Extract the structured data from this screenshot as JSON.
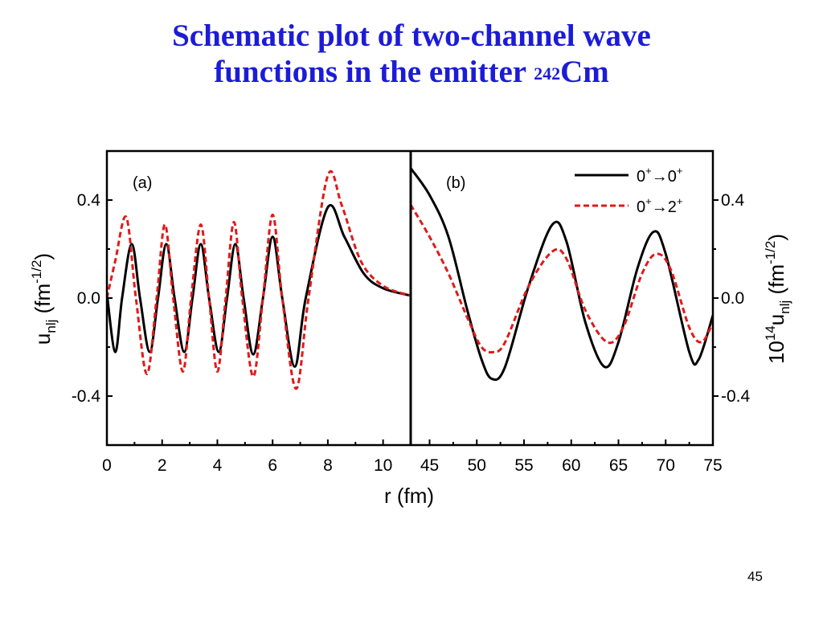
{
  "slide": {
    "title_line1": "Schematic plot of two-channel wave",
    "title_line2": "functions in the emitter ",
    "title_superscript": "242",
    "title_element": "Cm",
    "page_number": "45",
    "title_color": "#1c1cd6"
  },
  "chart_data": [
    {
      "type": "line",
      "panel_label": "(a)",
      "xlim": [
        0,
        11
      ],
      "ylim": [
        -0.6,
        0.6
      ],
      "x_ticks": [
        "0",
        "2",
        "4",
        "6",
        "8",
        "10"
      ],
      "y_ticks": [
        "0.4",
        "0.0",
        "-0.4"
      ],
      "ylabel": {
        "base": "u",
        "sub": "nlj",
        "unit": " (fm",
        "exp": "-1/2",
        "close": ")"
      },
      "series": [
        {
          "name": "0+→0+",
          "color": "#000000",
          "style": "solid",
          "points": [
            [
              0,
              0.02
            ],
            [
              0.3,
              -0.22
            ],
            [
              0.55,
              0
            ],
            [
              0.9,
              0.22
            ],
            [
              1.2,
              0
            ],
            [
              1.55,
              -0.22
            ],
            [
              1.85,
              0
            ],
            [
              2.15,
              0.22
            ],
            [
              2.45,
              0
            ],
            [
              2.8,
              -0.22
            ],
            [
              3.1,
              0
            ],
            [
              3.4,
              0.22
            ],
            [
              3.7,
              0
            ],
            [
              4.05,
              -0.22
            ],
            [
              4.35,
              0
            ],
            [
              4.65,
              0.22
            ],
            [
              4.95,
              0
            ],
            [
              5.3,
              -0.23
            ],
            [
              5.65,
              0
            ],
            [
              6.0,
              0.25
            ],
            [
              6.35,
              0
            ],
            [
              6.8,
              -0.28
            ],
            [
              7.2,
              0
            ],
            [
              8.0,
              0.37
            ],
            [
              8.6,
              0.25
            ],
            [
              9.3,
              0.1
            ],
            [
              10,
              0.04
            ],
            [
              11,
              0.01
            ]
          ]
        },
        {
          "name": "0+→2+",
          "color": "#e01a1a",
          "style": "dashed",
          "points": [
            [
              0,
              0
            ],
            [
              0.3,
              0.15
            ],
            [
              0.7,
              0.33
            ],
            [
              1.05,
              0
            ],
            [
              1.45,
              -0.31
            ],
            [
              1.8,
              0
            ],
            [
              2.1,
              0.3
            ],
            [
              2.4,
              0
            ],
            [
              2.75,
              -0.3
            ],
            [
              3.05,
              0
            ],
            [
              3.4,
              0.3
            ],
            [
              3.7,
              0
            ],
            [
              4.0,
              -0.3
            ],
            [
              4.3,
              0
            ],
            [
              4.6,
              0.31
            ],
            [
              4.9,
              0
            ],
            [
              5.3,
              -0.32
            ],
            [
              5.65,
              0
            ],
            [
              6.0,
              0.34
            ],
            [
              6.35,
              0
            ],
            [
              6.85,
              -0.37
            ],
            [
              7.3,
              0
            ],
            [
              8.0,
              0.5
            ],
            [
              8.5,
              0.38
            ],
            [
              9.2,
              0.15
            ],
            [
              10,
              0.05
            ],
            [
              11,
              0.01
            ]
          ]
        }
      ]
    },
    {
      "type": "line",
      "panel_label": "(b)",
      "xlim": [
        43,
        75
      ],
      "ylim": [
        -0.6,
        0.6
      ],
      "x_ticks": [
        "45",
        "50",
        "55",
        "60",
        "65",
        "70",
        "75"
      ],
      "y_ticks": [
        "0.4",
        "0.0",
        "-0.4"
      ],
      "ylabel": {
        "pre": "10",
        "pre_exp": "14",
        "base": "u",
        "sub": "nlj",
        "unit": " (fm",
        "exp": "-1/2",
        "close": ")"
      },
      "legend": [
        {
          "base": "0",
          "sup1": "+",
          "arrow": "→",
          "base2": "0",
          "sup2": "+"
        },
        {
          "base": "0",
          "sup1": "+",
          "arrow": "→",
          "base2": "2",
          "sup2": "+"
        }
      ],
      "series": [
        {
          "name": "0+→0+",
          "color": "#000000",
          "style": "solid",
          "points": [
            [
              43,
              0.53
            ],
            [
              45,
              0.42
            ],
            [
              47,
              0.25
            ],
            [
              49,
              -0.05
            ],
            [
              50.5,
              -0.25
            ],
            [
              51.6,
              -0.33
            ],
            [
              53,
              -0.28
            ],
            [
              55.5,
              0.05
            ],
            [
              58,
              0.3
            ],
            [
              59.5,
              0.23
            ],
            [
              61.5,
              -0.1
            ],
            [
              63.5,
              -0.28
            ],
            [
              65,
              -0.18
            ],
            [
              67,
              0.12
            ],
            [
              68.7,
              0.27
            ],
            [
              70,
              0.18
            ],
            [
              72.5,
              -0.22
            ],
            [
              73.5,
              -0.25
            ],
            [
              75,
              -0.07
            ]
          ]
        },
        {
          "name": "0+→2+",
          "color": "#e01a1a",
          "style": "dashed",
          "points": [
            [
              43,
              0.38
            ],
            [
              45,
              0.25
            ],
            [
              47,
              0.1
            ],
            [
              49,
              -0.08
            ],
            [
              50.5,
              -0.2
            ],
            [
              51.8,
              -0.22
            ],
            [
              53,
              -0.18
            ],
            [
              55.5,
              0.05
            ],
            [
              58,
              0.19
            ],
            [
              59.5,
              0.16
            ],
            [
              61.5,
              -0.05
            ],
            [
              63.8,
              -0.18
            ],
            [
              65.5,
              -0.12
            ],
            [
              67.5,
              0.1
            ],
            [
              69,
              0.18
            ],
            [
              70.5,
              0.12
            ],
            [
              72.5,
              -0.12
            ],
            [
              73.8,
              -0.18
            ],
            [
              75,
              -0.1
            ]
          ]
        }
      ]
    }
  ],
  "shared": {
    "xlabel": "r (fm)"
  }
}
